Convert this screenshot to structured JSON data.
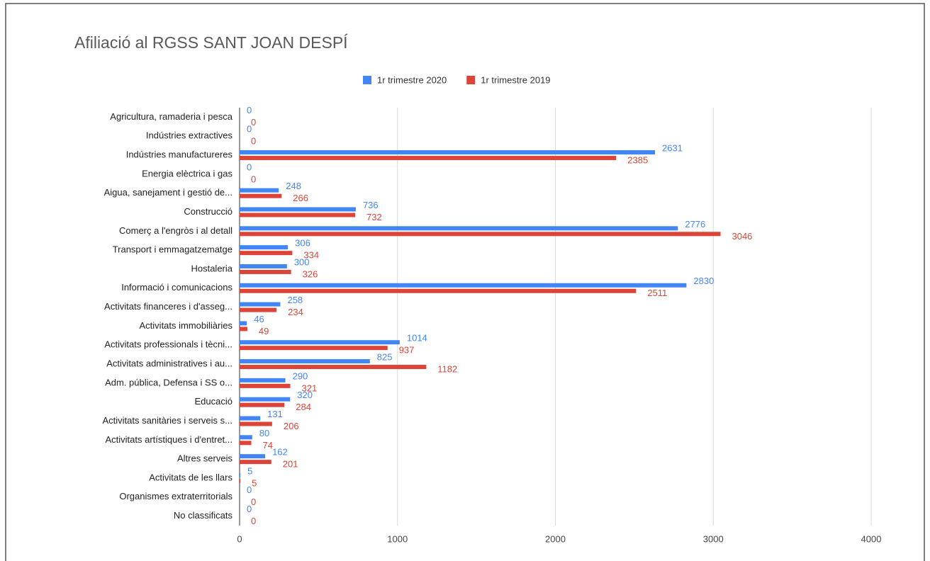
{
  "chart_data": {
    "type": "hbar",
    "title": "Afiliació al RGSS SANT JOAN DESPÍ",
    "categories": [
      "Agricultura, ramaderia i pesca",
      "Indústries extractives",
      "Indústries manufactureres",
      "Energia elèctrica i gas",
      "Aigua, sanejament i gestió de...",
      "Construcció",
      "Comerç a l'engròs i al detall",
      "Transport i emmagatzematge",
      "Hostaleria",
      "Informació i comunicacions",
      "Activitats financeres i d'asseg...",
      "Activitats immobiliàries",
      "Activitats professionals i tècni...",
      "Activitats administratives i au...",
      "Adm. pública, Defensa i SS o...",
      "Educació",
      "Activitats sanitàries i serveis s...",
      "Activitats artístiques i d'entret...",
      "Altres serveis",
      "Activitats de les llars",
      "Organismes extraterritorials",
      "No classificats"
    ],
    "series": [
      {
        "name": "1r trimestre 2020",
        "color": "#4285f4",
        "values": [
          0,
          0,
          2631,
          0,
          248,
          736,
          2776,
          306,
          300,
          2830,
          258,
          46,
          1014,
          825,
          290,
          320,
          131,
          80,
          162,
          5,
          0,
          0
        ]
      },
      {
        "name": "1r trimestre 2019",
        "color": "#db4437",
        "values": [
          0,
          0,
          2385,
          0,
          266,
          732,
          3046,
          334,
          326,
          2511,
          234,
          49,
          937,
          1182,
          321,
          284,
          206,
          74,
          201,
          5,
          0,
          0
        ]
      }
    ],
    "xlim": [
      0,
      4000
    ],
    "xticks": [
      0,
      1000,
      2000,
      3000,
      4000
    ],
    "grid": true,
    "legend": "top"
  }
}
